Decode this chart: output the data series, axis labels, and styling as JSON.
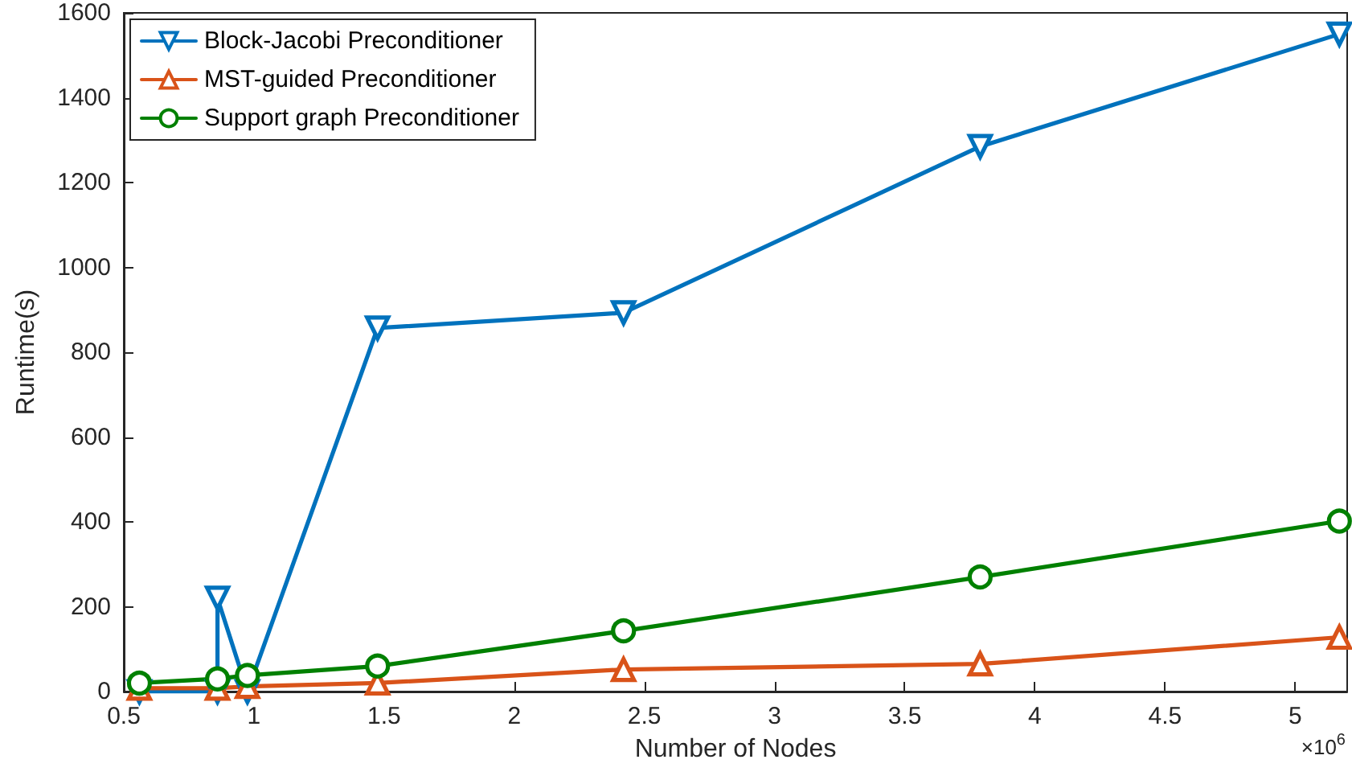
{
  "chart_data": {
    "type": "line",
    "xlabel": "Number of Nodes",
    "ylabel": "Runtime(s)",
    "annotations": [
      "×10$^{6}$"
    ],
    "xlim": [
      0.5,
      5.2
    ],
    "xticks": [
      0.5,
      1,
      1.5,
      2,
      2.5,
      3,
      3.5,
      4,
      4.5,
      5
    ],
    "ylim": [
      0,
      1600
    ],
    "yticks": [
      0,
      200,
      400,
      600,
      800,
      1000,
      1200,
      1400,
      1600
    ],
    "grid": false,
    "legend": "top left",
    "line_style": "solid",
    "series": [
      {
        "name": "Block-Jacobi Preconditioner",
        "color": "#0072bd",
        "marker": "triangle-down",
        "x": [
          0.56,
          0.86,
          0.86,
          0.975,
          1.475,
          2.42,
          3.79,
          5.17
        ],
        "values": [
          0,
          0,
          220,
          0,
          857,
          893,
          1285,
          1550
        ]
      },
      {
        "name": "MST-guided Preconditioner",
        "color": "#d95319",
        "marker": "triangle",
        "x": [
          0.56,
          0.86,
          0.975,
          1.475,
          2.42,
          3.79,
          5.17
        ],
        "values": [
          8,
          8,
          12,
          20,
          52,
          65,
          128
        ]
      },
      {
        "name": "Support graph Preconditioner",
        "color": "#008000",
        "marker": "circle",
        "x": [
          0.56,
          0.86,
          0.975,
          1.475,
          2.42,
          3.79,
          5.17
        ],
        "values": [
          20,
          30,
          38,
          60,
          143,
          270,
          402
        ]
      }
    ]
  }
}
